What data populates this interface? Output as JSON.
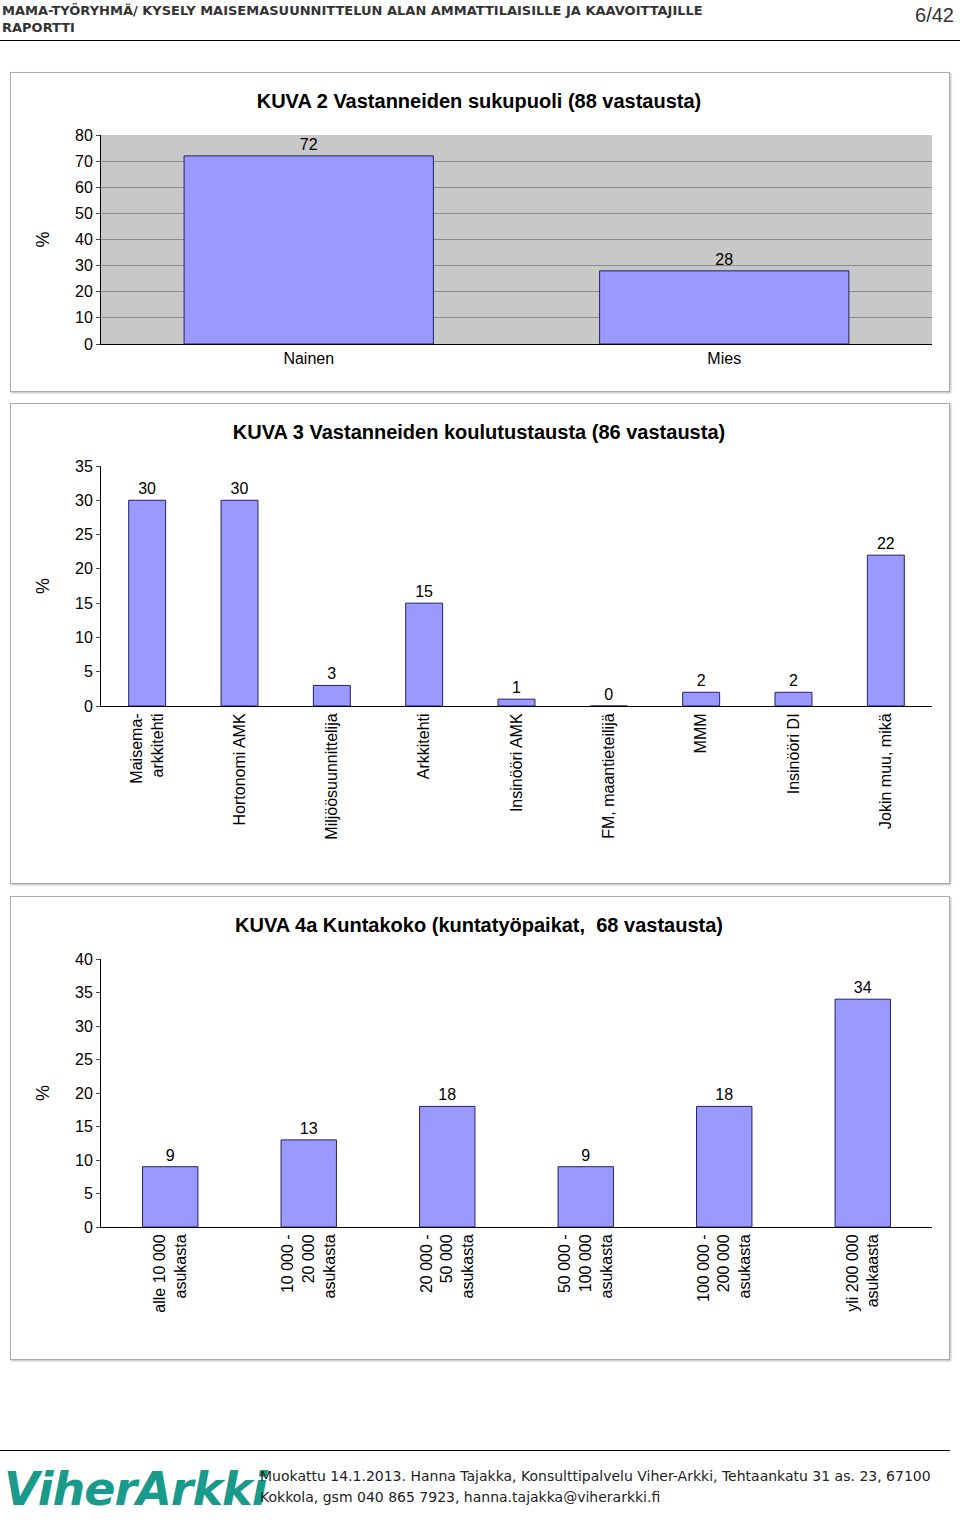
{
  "header": {
    "title_lines": [
      "MAMA-TYÖRYHMÄ/ KYSELY MAISEMASUUNNITTELUN ALAN AMMATTILAISILLE JA KAAVOITTAJILLE",
      "RAPORTTI"
    ],
    "page": "6/42"
  },
  "chart_data": [
    {
      "type": "bar",
      "title": "KUVA 2 Vastanneiden sukupuoli (88 vastausta)",
      "y_label": "%",
      "categories": [
        "Nainen",
        "Mies"
      ],
      "values": [
        72,
        28
      ],
      "color": "#9999ff",
      "ylim": [
        0,
        80
      ],
      "yticks": [
        0,
        10,
        20,
        30,
        40,
        50,
        60,
        70,
        80
      ],
      "grid": true,
      "data_labels": true
    },
    {
      "type": "bar",
      "title": "KUVA 3 Vastanneiden koulutustausta (86 vastausta)",
      "y_label": "%",
      "categories": [
        "Maisema-\narkkitehti",
        "Hortonomi AMK",
        "Miljöösuunnittelija",
        "Arkkitehti",
        "Insinööri AMK",
        "FM, maantieteilijä",
        "MMM",
        "Insinööri DI",
        "Jokin muu, mikä"
      ],
      "values": [
        30,
        30,
        3,
        15,
        1,
        0,
        2,
        2,
        22
      ],
      "color": "#9999ff",
      "ylim": [
        0,
        35
      ],
      "yticks": [
        0,
        5,
        10,
        15,
        20,
        25,
        30,
        35
      ],
      "grid": false,
      "data_labels": true
    },
    {
      "type": "bar",
      "title": "KUVA 4a Kuntakoko (kuntatyöpaikat,  68 vastausta)",
      "y_label": "%",
      "categories": [
        "alle 10 000\nasukasta",
        "10 000 -\n20 000\nasukasta",
        "20 000 -\n50 000\nasukasta",
        "50 000 -\n100 000\nasukasta",
        "100 000 -\n200 000\nasukasta",
        "yli 200 000\nasukaasta"
      ],
      "values": [
        9,
        13,
        18,
        9,
        18,
        34
      ],
      "color": "#9999ff",
      "ylim": [
        0,
        40
      ],
      "yticks": [
        0,
        5,
        10,
        15,
        20,
        25,
        30,
        35,
        40
      ],
      "grid": false,
      "data_labels": true
    }
  ],
  "footer": {
    "logo": "ViherArkki",
    "text": "Muokattu 14.1.2013. Hanna Tajakka, Konsulttipalvelu Viher-Arkki, Tehtaankatu 31 as. 23, 67100 Kokkola, gsm 040 865 7923, hanna.tajakka@viherarkki.fi"
  }
}
